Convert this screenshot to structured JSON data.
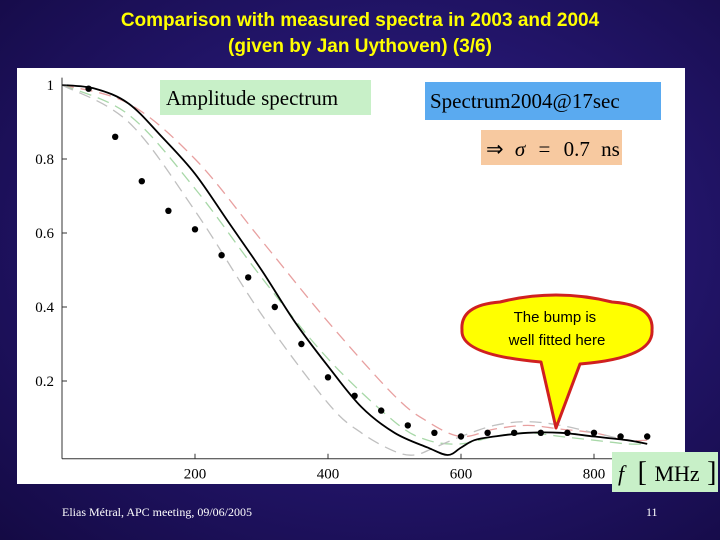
{
  "slide": {
    "title_line1": "Comparison with measured spectra in 2003 and 2004",
    "title_line2": "(given by Jan Uythoven) (3/6)",
    "footer_left": "Elias Métral, APC meeting, 09/06/2005",
    "page_number": "11"
  },
  "chart_data": {
    "type": "scatter",
    "title": "",
    "xlabel": "f [MHz]",
    "ylabel": "",
    "xlim": [
      0,
      950
    ],
    "ylim": [
      -0.01,
      1.02
    ],
    "x_ticks": [
      200,
      400,
      600,
      800
    ],
    "y_ticks": [
      0.2,
      0.4,
      0.6,
      0.8,
      1
    ],
    "grid": false,
    "annotations": {
      "panel_label": "Amplitude spectrum",
      "dataset_label": "Spectrum2004@17sec",
      "sigma_implies": "⇒",
      "sigma_symbol": "σ",
      "sigma_equals": "=",
      "sigma_value": "0.7",
      "sigma_unit": "ns",
      "callout": "The bump is well fitted here",
      "x_axis_f": "f",
      "x_axis_unit": "MHz"
    },
    "series": [
      {
        "kind": "points",
        "x": [
          40,
          80,
          120,
          160,
          200,
          240,
          280,
          320,
          360,
          400,
          440,
          480,
          520,
          560,
          600,
          640,
          680,
          720,
          760,
          800,
          840,
          880
        ],
        "y": [
          0.99,
          0.86,
          0.74,
          0.66,
          0.61,
          0.54,
          0.48,
          0.4,
          0.3,
          0.21,
          0.16,
          0.12,
          0.08,
          0.06,
          0.05,
          0.06,
          0.06,
          0.06,
          0.06,
          0.06,
          0.05,
          0.05
        ]
      },
      {
        "kind": "solid-fit",
        "color": "#000000",
        "x": [
          0,
          50,
          100,
          150,
          200,
          250,
          300,
          350,
          400,
          450,
          500,
          550,
          580,
          600,
          620,
          650,
          700,
          750,
          800,
          850,
          880
        ],
        "y": [
          1.0,
          0.99,
          0.95,
          0.86,
          0.76,
          0.63,
          0.5,
          0.36,
          0.24,
          0.13,
          0.06,
          0.02,
          0.0,
          0.02,
          0.04,
          0.05,
          0.06,
          0.06,
          0.05,
          0.04,
          0.03
        ]
      },
      {
        "kind": "dashed-fit",
        "color": "#e8a0a0",
        "x": [
          0,
          100,
          200,
          300,
          400,
          500,
          550,
          600,
          650,
          700,
          750,
          800,
          850,
          880
        ],
        "y": [
          1.0,
          0.95,
          0.8,
          0.58,
          0.36,
          0.16,
          0.09,
          0.05,
          0.07,
          0.08,
          0.07,
          0.06,
          0.04,
          0.04
        ]
      },
      {
        "kind": "dashed-fit",
        "color": "#a8d8a8",
        "x": [
          0,
          100,
          200,
          300,
          400,
          500,
          550,
          600,
          650,
          700,
          750,
          800,
          850,
          880
        ],
        "y": [
          1.0,
          0.92,
          0.72,
          0.48,
          0.26,
          0.09,
          0.04,
          0.03,
          0.05,
          0.06,
          0.05,
          0.04,
          0.03,
          0.03
        ]
      },
      {
        "kind": "dashed-fit",
        "color": "#c0c0c0",
        "x": [
          0,
          100,
          200,
          300,
          400,
          450,
          500,
          530,
          560,
          600,
          650,
          700,
          750,
          800,
          850,
          880
        ],
        "y": [
          1.0,
          0.9,
          0.66,
          0.38,
          0.14,
          0.06,
          0.01,
          0.0,
          0.02,
          0.05,
          0.08,
          0.09,
          0.08,
          0.06,
          0.04,
          0.03
        ]
      }
    ]
  }
}
